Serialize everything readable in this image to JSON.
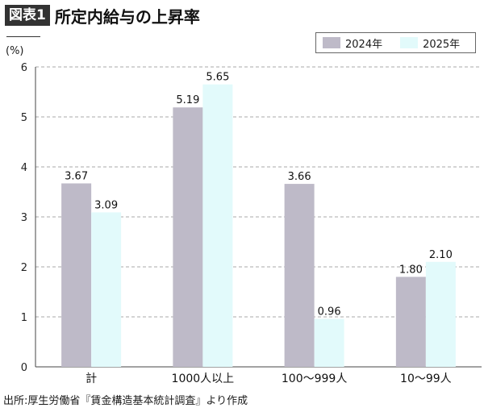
{
  "header": {
    "badge": "図表1",
    "title": "所定内給与の上昇率"
  },
  "chart_data": {
    "type": "bar",
    "unit_label": "(%)",
    "categories": [
      "計",
      "1000人以上",
      "100〜999人",
      "10〜99人"
    ],
    "series": [
      {
        "name": "2024年",
        "color": "#bebac8",
        "values": [
          3.67,
          5.19,
          3.66,
          1.8
        ],
        "labels": [
          "3.67",
          "5.19",
          "3.66",
          "1.80"
        ]
      },
      {
        "name": "2025年",
        "color": "#e2fafb",
        "values": [
          3.09,
          5.65,
          0.96,
          2.1
        ],
        "labels": [
          "3.09",
          "5.65",
          "0.96",
          "2.10"
        ]
      }
    ],
    "ylim": [
      0,
      6
    ],
    "yticks": [
      "0",
      "1",
      "2",
      "3",
      "4",
      "5",
      "6"
    ],
    "grid": true,
    "legend": "top-right"
  },
  "source": "出所:厚生労働省『賃金構造基本統計調査』より作成"
}
